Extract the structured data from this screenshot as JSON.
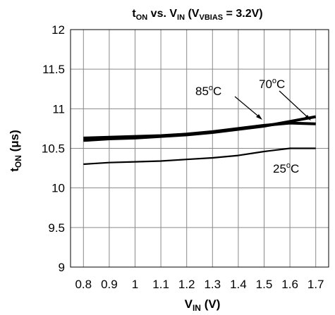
{
  "chart_data": {
    "type": "line",
    "title": {
      "main": "t",
      "sub1": "ON",
      "mid": " vs. V",
      "sub2": "IN",
      "mid2": " (V",
      "sub3": "VBIAS",
      "end": " = 3.2V)"
    },
    "xlabel": {
      "main": "V",
      "sub": "IN",
      "unit": " (V)"
    },
    "ylabel": {
      "main": "t",
      "sub": "ON",
      "unit": " (μs)"
    },
    "xlim": [
      0.75,
      1.75
    ],
    "ylim": [
      9,
      12
    ],
    "x_ticks": [
      0.8,
      0.9,
      1,
      1.1,
      1.2,
      1.3,
      1.4,
      1.5,
      1.6,
      1.7
    ],
    "x_tick_labels": [
      "0.8",
      "0.9",
      "1",
      "1.1",
      "1.2",
      "1.3",
      "1.4",
      "1.5",
      "1.6",
      "1.7"
    ],
    "y_ticks": [
      9,
      9.5,
      10,
      10.5,
      11,
      11.5,
      12
    ],
    "y_tick_labels": [
      "9",
      "9.5",
      "10",
      "10.5",
      "11",
      "11.5",
      "12"
    ],
    "grid": true,
    "series": [
      {
        "name": "85°C",
        "x": [
          0.8,
          0.9,
          1.0,
          1.1,
          1.2,
          1.3,
          1.4,
          1.5,
          1.6,
          1.7
        ],
        "values": [
          10.6,
          10.62,
          10.63,
          10.65,
          10.67,
          10.7,
          10.74,
          10.78,
          10.84,
          10.9
        ],
        "color": "#000000",
        "width": "thick"
      },
      {
        "name": "70°C",
        "x": [
          0.8,
          0.9,
          1.0,
          1.1,
          1.2,
          1.3,
          1.4,
          1.5,
          1.6,
          1.7
        ],
        "values": [
          10.63,
          10.64,
          10.65,
          10.66,
          10.68,
          10.71,
          10.75,
          10.79,
          10.82,
          10.81
        ],
        "color": "#000000",
        "width": "thick"
      },
      {
        "name": "25°C",
        "x": [
          0.8,
          0.9,
          1.0,
          1.1,
          1.2,
          1.3,
          1.4,
          1.5,
          1.6,
          1.7
        ],
        "values": [
          10.3,
          10.32,
          10.33,
          10.34,
          10.36,
          10.38,
          10.41,
          10.46,
          10.5,
          10.5
        ],
        "color": "#000000",
        "width": "thin"
      }
    ],
    "annotations": [
      {
        "label": {
          "base": "85",
          "sup": "o",
          "unit": "C"
        },
        "series": "85°C"
      },
      {
        "label": {
          "base": "70",
          "sup": "o",
          "unit": "C"
        },
        "series": "70°C"
      },
      {
        "label": {
          "base": "25",
          "sup": "o",
          "unit": "C"
        },
        "series": "25°C"
      }
    ]
  }
}
